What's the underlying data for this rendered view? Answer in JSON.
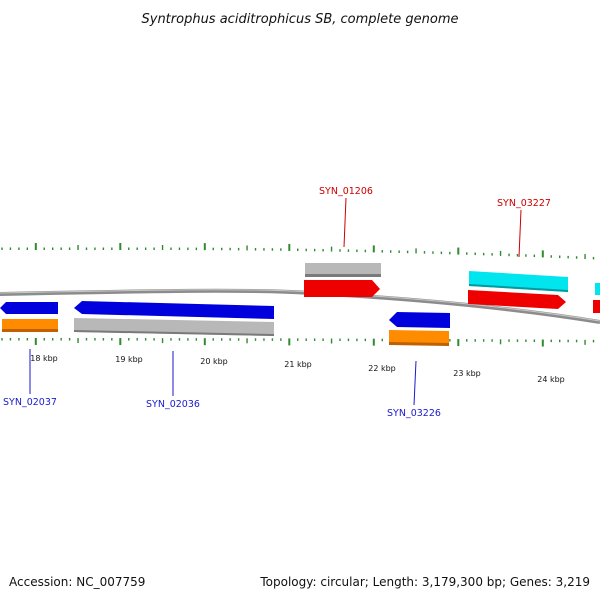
{
  "title": "Syntrophus aciditrophicus SB, complete genome",
  "footer": {
    "accession": "Accession: NC_007759",
    "summary": "Topology: circular; Length: 3,179,300 bp; Genes: 3,219"
  },
  "colors": {
    "backbone": "#8c8c8c",
    "tick": "#2e8b2e",
    "forward_label": "#cc0000",
    "reverse_label": "#1a1acc",
    "forward_cds": "#ee0000",
    "reverse_cds": "#0000dd",
    "gene": "#b8b8b8",
    "trna": "#ff8c00",
    "rrna": "#00e5ee"
  },
  "kbp_labels": [
    "18 kbp",
    "19 kbp",
    "20 kbp",
    "21 kbp",
    "22 kbp",
    "23 kbp",
    "24 kbp"
  ],
  "features": [
    {
      "name": "SYN_02037",
      "strand": "reverse",
      "kind": "cds+trna"
    },
    {
      "name": "SYN_02036",
      "strand": "reverse",
      "kind": "cds+gene"
    },
    {
      "name": "SYN_01206",
      "strand": "forward",
      "kind": "gene+cds"
    },
    {
      "name": "SYN_03226",
      "strand": "reverse",
      "kind": "cds+trna"
    },
    {
      "name": "SYN_03227",
      "strand": "forward",
      "kind": "rrna+cds"
    }
  ]
}
